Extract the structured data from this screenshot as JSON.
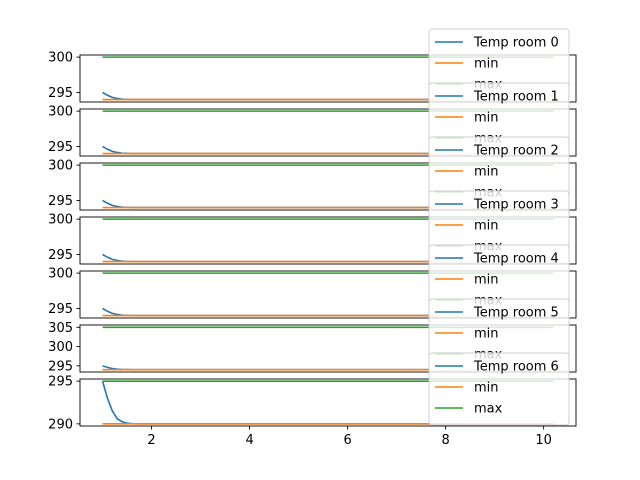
{
  "chart_data": [
    {
      "type": "line",
      "x_range": [
        1,
        10.2
      ],
      "ylim": [
        293.65,
        300.3
      ],
      "yticks": [
        295,
        300
      ],
      "series": [
        {
          "name": "Temp room 0",
          "color": "#1f77b4",
          "x": [
            1.0,
            1.1,
            1.2,
            1.3,
            1.4,
            1.5,
            1.6,
            1.8,
            2.0,
            10.2
          ],
          "y": [
            295.0,
            294.6,
            294.3,
            294.15,
            294.05,
            294.02,
            294.0,
            294.0,
            294.0,
            294.0
          ]
        },
        {
          "name": "min",
          "color": "#ff7f0e",
          "x": [
            1,
            10.2
          ],
          "y": [
            294,
            294
          ]
        },
        {
          "name": "max",
          "color": "#2ca02c",
          "x": [
            1,
            10.2
          ],
          "y": [
            300,
            300
          ]
        }
      ],
      "legend_position": "top-right"
    },
    {
      "type": "line",
      "x_range": [
        1,
        10.2
      ],
      "ylim": [
        293.65,
        300.3
      ],
      "yticks": [
        295,
        300
      ],
      "series": [
        {
          "name": "Temp room 1",
          "color": "#1f77b4",
          "x": [
            1.0,
            1.1,
            1.2,
            1.3,
            1.4,
            1.5,
            1.6,
            1.8,
            2.0,
            10.2
          ],
          "y": [
            295.0,
            294.6,
            294.3,
            294.15,
            294.05,
            294.02,
            294.0,
            294.0,
            294.0,
            294.0
          ]
        },
        {
          "name": "min",
          "color": "#ff7f0e",
          "x": [
            1,
            10.2
          ],
          "y": [
            294,
            294
          ]
        },
        {
          "name": "max",
          "color": "#2ca02c",
          "x": [
            1,
            10.2
          ],
          "y": [
            300,
            300
          ]
        }
      ],
      "legend_position": "top-right"
    },
    {
      "type": "line",
      "x_range": [
        1,
        10.2
      ],
      "ylim": [
        293.65,
        300.3
      ],
      "yticks": [
        295,
        300
      ],
      "series": [
        {
          "name": "Temp room 2",
          "color": "#1f77b4",
          "x": [
            1.0,
            1.1,
            1.2,
            1.3,
            1.4,
            1.5,
            1.6,
            1.8,
            2.0,
            10.2
          ],
          "y": [
            295.0,
            294.6,
            294.3,
            294.15,
            294.05,
            294.02,
            294.0,
            294.0,
            294.0,
            294.0
          ]
        },
        {
          "name": "min",
          "color": "#ff7f0e",
          "x": [
            1,
            10.2
          ],
          "y": [
            294,
            294
          ]
        },
        {
          "name": "max",
          "color": "#2ca02c",
          "x": [
            1,
            10.2
          ],
          "y": [
            300,
            300
          ]
        }
      ],
      "legend_position": "top-right"
    },
    {
      "type": "line",
      "x_range": [
        1,
        10.2
      ],
      "ylim": [
        293.65,
        300.3
      ],
      "yticks": [
        295,
        300
      ],
      "series": [
        {
          "name": "Temp room 3",
          "color": "#1f77b4",
          "x": [
            1.0,
            1.1,
            1.2,
            1.3,
            1.4,
            1.5,
            1.6,
            1.8,
            2.0,
            10.2
          ],
          "y": [
            295.0,
            294.6,
            294.3,
            294.15,
            294.05,
            294.02,
            294.0,
            294.0,
            294.0,
            294.0
          ]
        },
        {
          "name": "min",
          "color": "#ff7f0e",
          "x": [
            1,
            10.2
          ],
          "y": [
            294,
            294
          ]
        },
        {
          "name": "max",
          "color": "#2ca02c",
          "x": [
            1,
            10.2
          ],
          "y": [
            300,
            300
          ]
        }
      ],
      "legend_position": "top-right"
    },
    {
      "type": "line",
      "x_range": [
        1,
        10.2
      ],
      "ylim": [
        293.65,
        300.3
      ],
      "yticks": [
        295,
        300
      ],
      "series": [
        {
          "name": "Temp room 4",
          "color": "#1f77b4",
          "x": [
            1.0,
            1.1,
            1.2,
            1.3,
            1.4,
            1.5,
            1.6,
            1.8,
            2.0,
            10.2
          ],
          "y": [
            295.0,
            294.6,
            294.3,
            294.15,
            294.05,
            294.02,
            294.0,
            294.0,
            294.0,
            294.0
          ]
        },
        {
          "name": "min",
          "color": "#ff7f0e",
          "x": [
            1,
            10.2
          ],
          "y": [
            294,
            294
          ]
        },
        {
          "name": "max",
          "color": "#2ca02c",
          "x": [
            1,
            10.2
          ],
          "y": [
            300,
            300
          ]
        }
      ],
      "legend_position": "top-right"
    },
    {
      "type": "line",
      "x_range": [
        1,
        10.2
      ],
      "ylim": [
        293.4,
        305.6
      ],
      "yticks": [
        295,
        300,
        305
      ],
      "series": [
        {
          "name": "Temp room 5",
          "color": "#1f77b4",
          "x": [
            1.0,
            1.1,
            1.2,
            1.3,
            1.4,
            1.5,
            1.6,
            1.8,
            2.0,
            10.2
          ],
          "y": [
            295.0,
            294.6,
            294.3,
            294.15,
            294.05,
            294.02,
            294.0,
            294.0,
            294.0,
            294.0
          ]
        },
        {
          "name": "min",
          "color": "#ff7f0e",
          "x": [
            1,
            10.2
          ],
          "y": [
            294,
            294
          ]
        },
        {
          "name": "max",
          "color": "#2ca02c",
          "x": [
            1,
            10.2
          ],
          "y": [
            305,
            305
          ]
        }
      ],
      "legend_position": "top-right"
    },
    {
      "type": "line",
      "x_range": [
        1,
        10.2
      ],
      "ylim": [
        289.75,
        295.25
      ],
      "yticks": [
        290,
        295
      ],
      "xticks": [
        2,
        4,
        6,
        8,
        10
      ],
      "series": [
        {
          "name": "Temp room 6",
          "color": "#1f77b4",
          "x": [
            1.0,
            1.1,
            1.2,
            1.3,
            1.4,
            1.5,
            1.6,
            1.8,
            2.0,
            10.2
          ],
          "y": [
            295.0,
            293.0,
            291.5,
            290.6,
            290.25,
            290.08,
            290.02,
            290.0,
            290.0,
            290.0
          ]
        },
        {
          "name": "min",
          "color": "#ff7f0e",
          "x": [
            1,
            10.2
          ],
          "y": [
            290,
            290
          ]
        },
        {
          "name": "max",
          "color": "#2ca02c",
          "x": [
            1,
            10.2
          ],
          "y": [
            295,
            295
          ]
        }
      ],
      "legend_position": "top-right"
    }
  ]
}
